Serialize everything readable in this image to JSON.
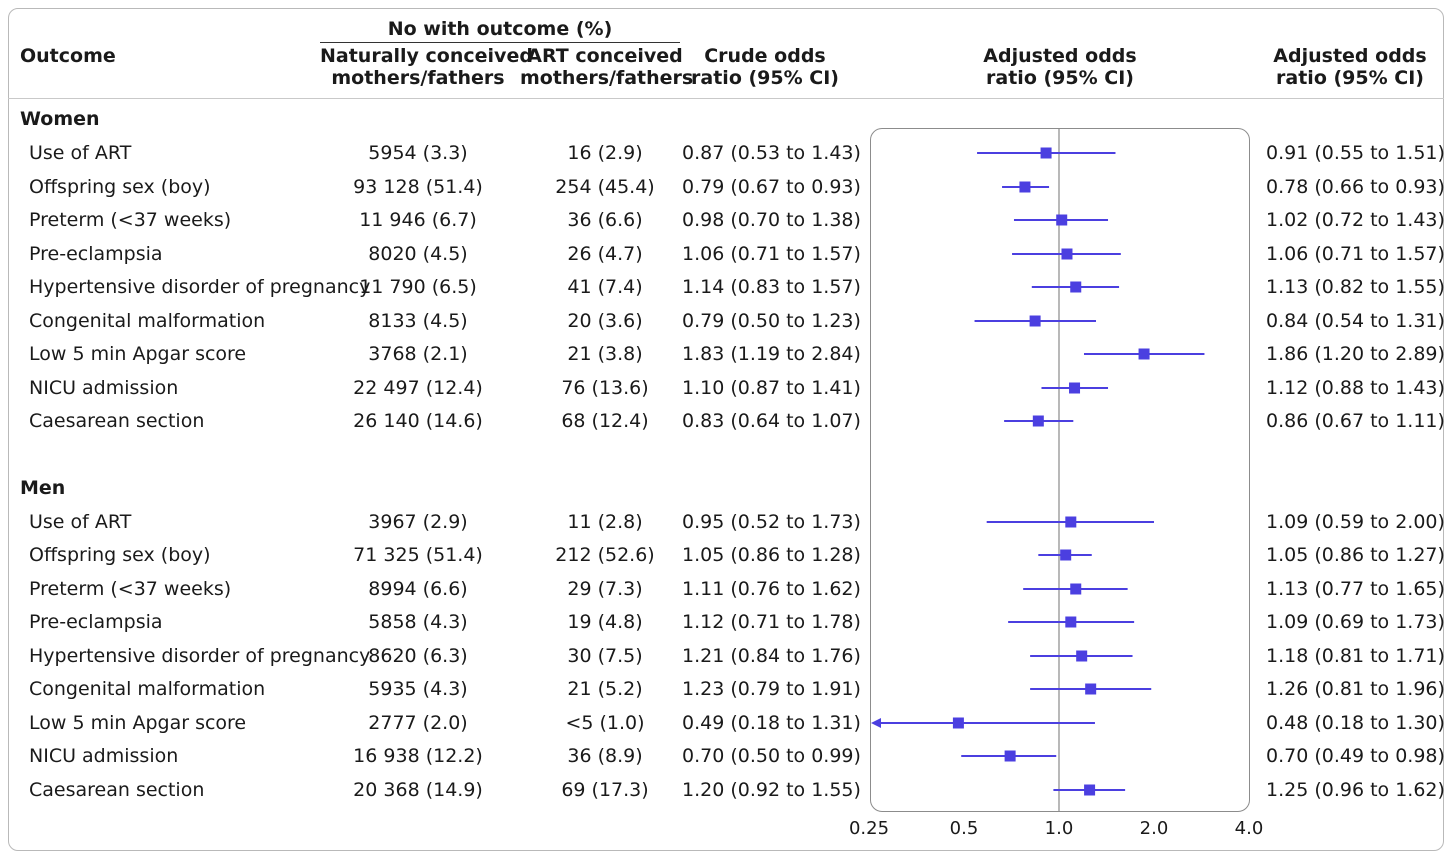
{
  "header": {
    "outcome": "Outcome",
    "group": "No with outcome (%)",
    "natural_1": "Naturally conceived",
    "natural_2": "mothers/fathers",
    "art_1": "ART conceived",
    "art_2": "mothers/fathers",
    "crude_1": "Crude odds",
    "crude_2": "ratio (95% CI)",
    "adj_1": "Adjusted odds",
    "adj_2": "ratio (95% CI)",
    "adjr_1": "Adjusted odds",
    "adjr_2": "ratio (95% CI)"
  },
  "sections": [
    {
      "label": "Women",
      "rows": [
        {
          "outcome": "Use of ART",
          "natural": "5954 (3.3)",
          "art": "16 (2.9)",
          "crude": "0.87 (0.53 to 1.43)",
          "adjusted": "0.91 (0.55 to 1.51)"
        },
        {
          "outcome": "Offspring sex (boy)",
          "natural": "93 128 (51.4)",
          "art": "254 (45.4)",
          "crude": "0.79 (0.67 to 0.93)",
          "adjusted": "0.78 (0.66 to 0.93)"
        },
        {
          "outcome": "Preterm (<37 weeks)",
          "natural": "11 946 (6.7)",
          "art": "36 (6.6)",
          "crude": "0.98 (0.70 to 1.38)",
          "adjusted": "1.02 (0.72 to 1.43)"
        },
        {
          "outcome": "Pre-eclampsia",
          "natural": "8020 (4.5)",
          "art": "26 (4.7)",
          "crude": "1.06 (0.71 to 1.57)",
          "adjusted": "1.06 (0.71 to 1.57)"
        },
        {
          "outcome": "Hypertensive disorder of pregnancy",
          "natural": "11 790 (6.5)",
          "art": "41 (7.4)",
          "crude": "1.14 (0.83 to 1.57)",
          "adjusted": "1.13 (0.82 to 1.55)"
        },
        {
          "outcome": "Congenital malformation",
          "natural": "8133 (4.5)",
          "art": "20 (3.6)",
          "crude": "0.79 (0.50 to 1.23)",
          "adjusted": "0.84 (0.54 to 1.31)"
        },
        {
          "outcome": "Low 5 min Apgar score",
          "natural": "3768 (2.1)",
          "art": "21 (3.8)",
          "crude": "1.83 (1.19 to 2.84)",
          "adjusted": "1.86 (1.20 to 2.89)"
        },
        {
          "outcome": "NICU admission",
          "natural": "22 497 (12.4)",
          "art": "76 (13.6)",
          "crude": "1.10 (0.87 to 1.41)",
          "adjusted": "1.12 (0.88 to 1.43)"
        },
        {
          "outcome": "Caesarean section",
          "natural": "26 140 (14.6)",
          "art": "68 (12.4)",
          "crude": "0.83 (0.64 to 1.07)",
          "adjusted": "0.86 (0.67 to 1.11)"
        }
      ]
    },
    {
      "label": "Men",
      "rows": [
        {
          "outcome": "Use of ART",
          "natural": "3967 (2.9)",
          "art": "11 (2.8)",
          "crude": "0.95 (0.52 to 1.73)",
          "adjusted": "1.09 (0.59 to 2.00)"
        },
        {
          "outcome": "Offspring sex (boy)",
          "natural": "71 325 (51.4)",
          "art": "212 (52.6)",
          "crude": "1.05 (0.86 to 1.28)",
          "adjusted": "1.05 (0.86 to 1.27)"
        },
        {
          "outcome": "Preterm (<37 weeks)",
          "natural": "8994 (6.6)",
          "art": "29 (7.3)",
          "crude": "1.11 (0.76 to 1.62)",
          "adjusted": "1.13 (0.77 to 1.65)"
        },
        {
          "outcome": "Pre-eclampsia",
          "natural": "5858 (4.3)",
          "art": "19 (4.8)",
          "crude": "1.12 (0.71 to 1.78)",
          "adjusted": "1.09 (0.69 to 1.73)"
        },
        {
          "outcome": "Hypertensive disorder of pregnancy",
          "natural": "8620 (6.3)",
          "art": "30 (7.5)",
          "crude": "1.21 (0.84 to 1.76)",
          "adjusted": "1.18 (0.81 to 1.71)"
        },
        {
          "outcome": "Congenital malformation",
          "natural": "5935 (4.3)",
          "art": "21 (5.2)",
          "crude": "1.23 (0.79 to 1.91)",
          "adjusted": "1.26 (0.81 to 1.96)"
        },
        {
          "outcome": "Low 5 min Apgar score",
          "natural": "2777 (2.0)",
          "art": "<5 (1.0)",
          "crude": "0.49 (0.18 to 1.31)",
          "adjusted": "0.48 (0.18 to 1.30)"
        },
        {
          "outcome": "NICU admission",
          "natural": "16 938 (12.2)",
          "art": "36 (8.9)",
          "crude": "0.70 (0.50 to 0.99)",
          "adjusted": "0.70 (0.49 to 0.98)"
        },
        {
          "outcome": "Caesarean section",
          "natural": "20 368 (14.9)",
          "art": "69 (17.3)",
          "crude": "1.20 (0.92 to 1.55)",
          "adjusted": "1.25 (0.96 to 1.62)"
        }
      ]
    }
  ],
  "chart_data": {
    "type": "forest",
    "x_scale": "log2",
    "xlim": [
      0.25,
      4.0
    ],
    "xticks": [
      "0.25",
      "0.5",
      "1.0",
      "2.0",
      "4.0"
    ],
    "xtick_values": [
      0.25,
      0.5,
      1.0,
      2.0,
      4.0
    ],
    "reference_line": 1.0,
    "marker_color": "#4b3fe0",
    "series": [
      {
        "name": "Women",
        "points": [
          {
            "or": 0.91,
            "lo": 0.55,
            "hi": 1.51
          },
          {
            "or": 0.78,
            "lo": 0.66,
            "hi": 0.93
          },
          {
            "or": 1.02,
            "lo": 0.72,
            "hi": 1.43
          },
          {
            "or": 1.06,
            "lo": 0.71,
            "hi": 1.57
          },
          {
            "or": 1.13,
            "lo": 0.82,
            "hi": 1.55
          },
          {
            "or": 0.84,
            "lo": 0.54,
            "hi": 1.31
          },
          {
            "or": 1.86,
            "lo": 1.2,
            "hi": 2.89
          },
          {
            "or": 1.12,
            "lo": 0.88,
            "hi": 1.43
          },
          {
            "or": 0.86,
            "lo": 0.67,
            "hi": 1.11
          }
        ]
      },
      {
        "name": "Men",
        "points": [
          {
            "or": 1.09,
            "lo": 0.59,
            "hi": 2.0
          },
          {
            "or": 1.05,
            "lo": 0.86,
            "hi": 1.27
          },
          {
            "or": 1.13,
            "lo": 0.77,
            "hi": 1.65
          },
          {
            "or": 1.09,
            "lo": 0.69,
            "hi": 1.73
          },
          {
            "or": 1.18,
            "lo": 0.81,
            "hi": 1.71
          },
          {
            "or": 1.26,
            "lo": 0.81,
            "hi": 1.96
          },
          {
            "or": 0.48,
            "lo": 0.18,
            "hi": 1.3,
            "truncated_low": true
          },
          {
            "or": 0.7,
            "lo": 0.49,
            "hi": 0.98
          },
          {
            "or": 1.25,
            "lo": 0.96,
            "hi": 1.62
          }
        ]
      }
    ]
  }
}
